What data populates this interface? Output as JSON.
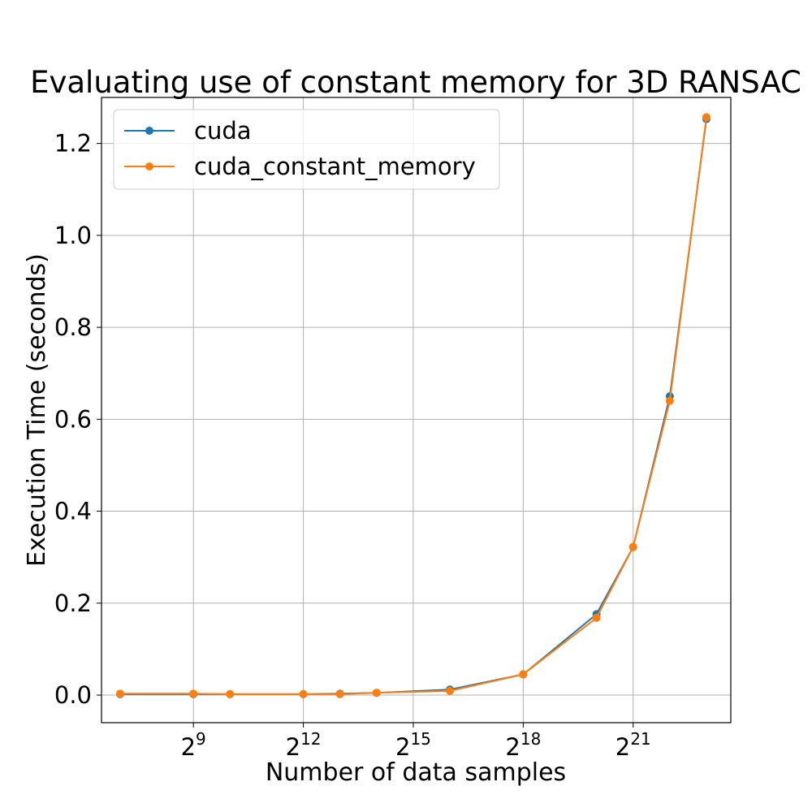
{
  "chart_data": {
    "type": "line",
    "title": "Evaluating use of constant memory for 3D RANSAC",
    "xlabel": "Number of data samples",
    "ylabel": "Execution Time (seconds)",
    "x_scale": "log2",
    "xlim": [
      90,
      13300000
    ],
    "ylim": [
      -0.06,
      1.3
    ],
    "x_ticks": [
      {
        "value": 512,
        "base": "2",
        "exp": "9"
      },
      {
        "value": 4096,
        "base": "2",
        "exp": "12"
      },
      {
        "value": 32768,
        "base": "2",
        "exp": "15"
      },
      {
        "value": 262144,
        "base": "2",
        "exp": "18"
      },
      {
        "value": 2097152,
        "base": "2",
        "exp": "21"
      }
    ],
    "y_ticks": [
      "0.0",
      "0.2",
      "0.4",
      "0.6",
      "0.8",
      "1.0",
      "1.2"
    ],
    "grid": true,
    "legend_position": "top-left",
    "x": [
      128,
      512,
      1024,
      4096,
      8192,
      16384,
      65536,
      262144,
      1048576,
      2097152,
      4194304,
      8388608
    ],
    "series": [
      {
        "name": "cuda",
        "color": "#1f77b4",
        "values": [
          0.002,
          0.002,
          0.002,
          0.002,
          0.003,
          0.005,
          0.012,
          0.045,
          0.176,
          0.322,
          0.65,
          1.253
        ]
      },
      {
        "name": "cuda_constant_memory",
        "color": "#ff7f0e",
        "values": [
          0.003,
          0.003,
          0.002,
          0.002,
          0.002,
          0.005,
          0.009,
          0.045,
          0.168,
          0.322,
          0.64,
          1.257
        ]
      }
    ]
  }
}
